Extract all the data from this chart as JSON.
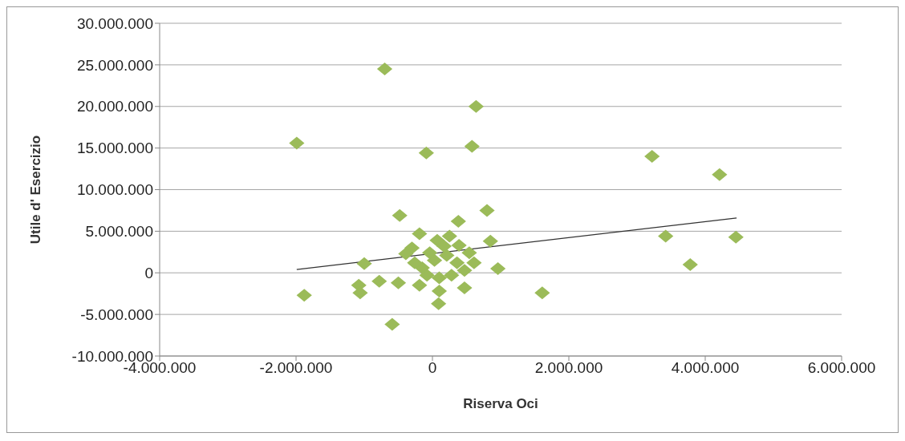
{
  "chart_data": {
    "type": "scatter",
    "xlabel": "Riserva Oci",
    "ylabel": "Utile d' Esercizio",
    "marker": "diamond",
    "grid": "y",
    "legend": false,
    "xlim": [
      -4000000,
      6000000
    ],
    "xticks": [
      {
        "value": -4000000,
        "label": "-4.000.000"
      },
      {
        "value": -2000000,
        "label": "-2.000.000"
      },
      0,
      {
        "value": 2000000,
        "label": "2.000.000"
      },
      {
        "value": 4000000,
        "label": "4.000.000"
      },
      {
        "value": 6000000,
        "label": "6.000.000"
      }
    ],
    "ylim": [
      -10000000,
      30000000
    ],
    "yticks": [
      {
        "value": -10000000,
        "label": "-10.000.000"
      },
      {
        "value": -5000000,
        "label": "-5.000.000"
      },
      0,
      {
        "value": 5000000,
        "label": "5.000.000"
      },
      {
        "value": 10000000,
        "label": "10.000.000"
      },
      {
        "value": 15000000,
        "label": "15.000.000"
      },
      {
        "value": 20000000,
        "label": "20.000.000"
      },
      {
        "value": 25000000,
        "label": "25.000.000"
      },
      {
        "value": 30000000,
        "label": "30.000.000"
      }
    ],
    "series": [
      {
        "color": "#9bbb59",
        "x": [
          -700000,
          -1990000,
          -90000,
          640000,
          580000,
          -480000,
          3220000,
          4210000,
          800000,
          380000,
          3420000,
          4450000,
          3780000,
          960000,
          1610000,
          850000,
          -1000000,
          -1880000,
          -1080000,
          -1060000,
          -840000,
          -780000,
          -590000,
          50000,
          470000,
          100000,
          90000,
          -500000,
          -190000,
          -300000,
          -390000,
          -190000,
          70000,
          250000,
          390000,
          540000,
          610000,
          470000,
          280000,
          100000,
          -80000,
          -150000,
          30000,
          210000,
          360000,
          -40000,
          170000,
          -260000
        ],
        "values": [
          24500000,
          15600000,
          14400000,
          20000000,
          15200000,
          6900000,
          14000000,
          11800000,
          7500000,
          6200000,
          4400000,
          4300000,
          1000000,
          500000,
          -2400000,
          3800000,
          1100000,
          -2700000,
          -1500000,
          -2400000,
          null,
          -1000000,
          -6200000,
          null,
          -1800000,
          -2200000,
          -3700000,
          -1200000,
          4700000,
          3000000,
          2300000,
          -1500000,
          3900000,
          4400000,
          3300000,
          2400000,
          1200000,
          300000,
          -300000,
          -600000,
          -300000,
          600000,
          1500000,
          2100000,
          1200000,
          2400000,
          3200000,
          1200000
        ]
      },
      {
        "type": "line",
        "color": "#333333",
        "marker": "none",
        "x": [
          -1990000,
          4460000
        ],
        "values": [
          400000,
          6600000
        ]
      }
    ]
  }
}
